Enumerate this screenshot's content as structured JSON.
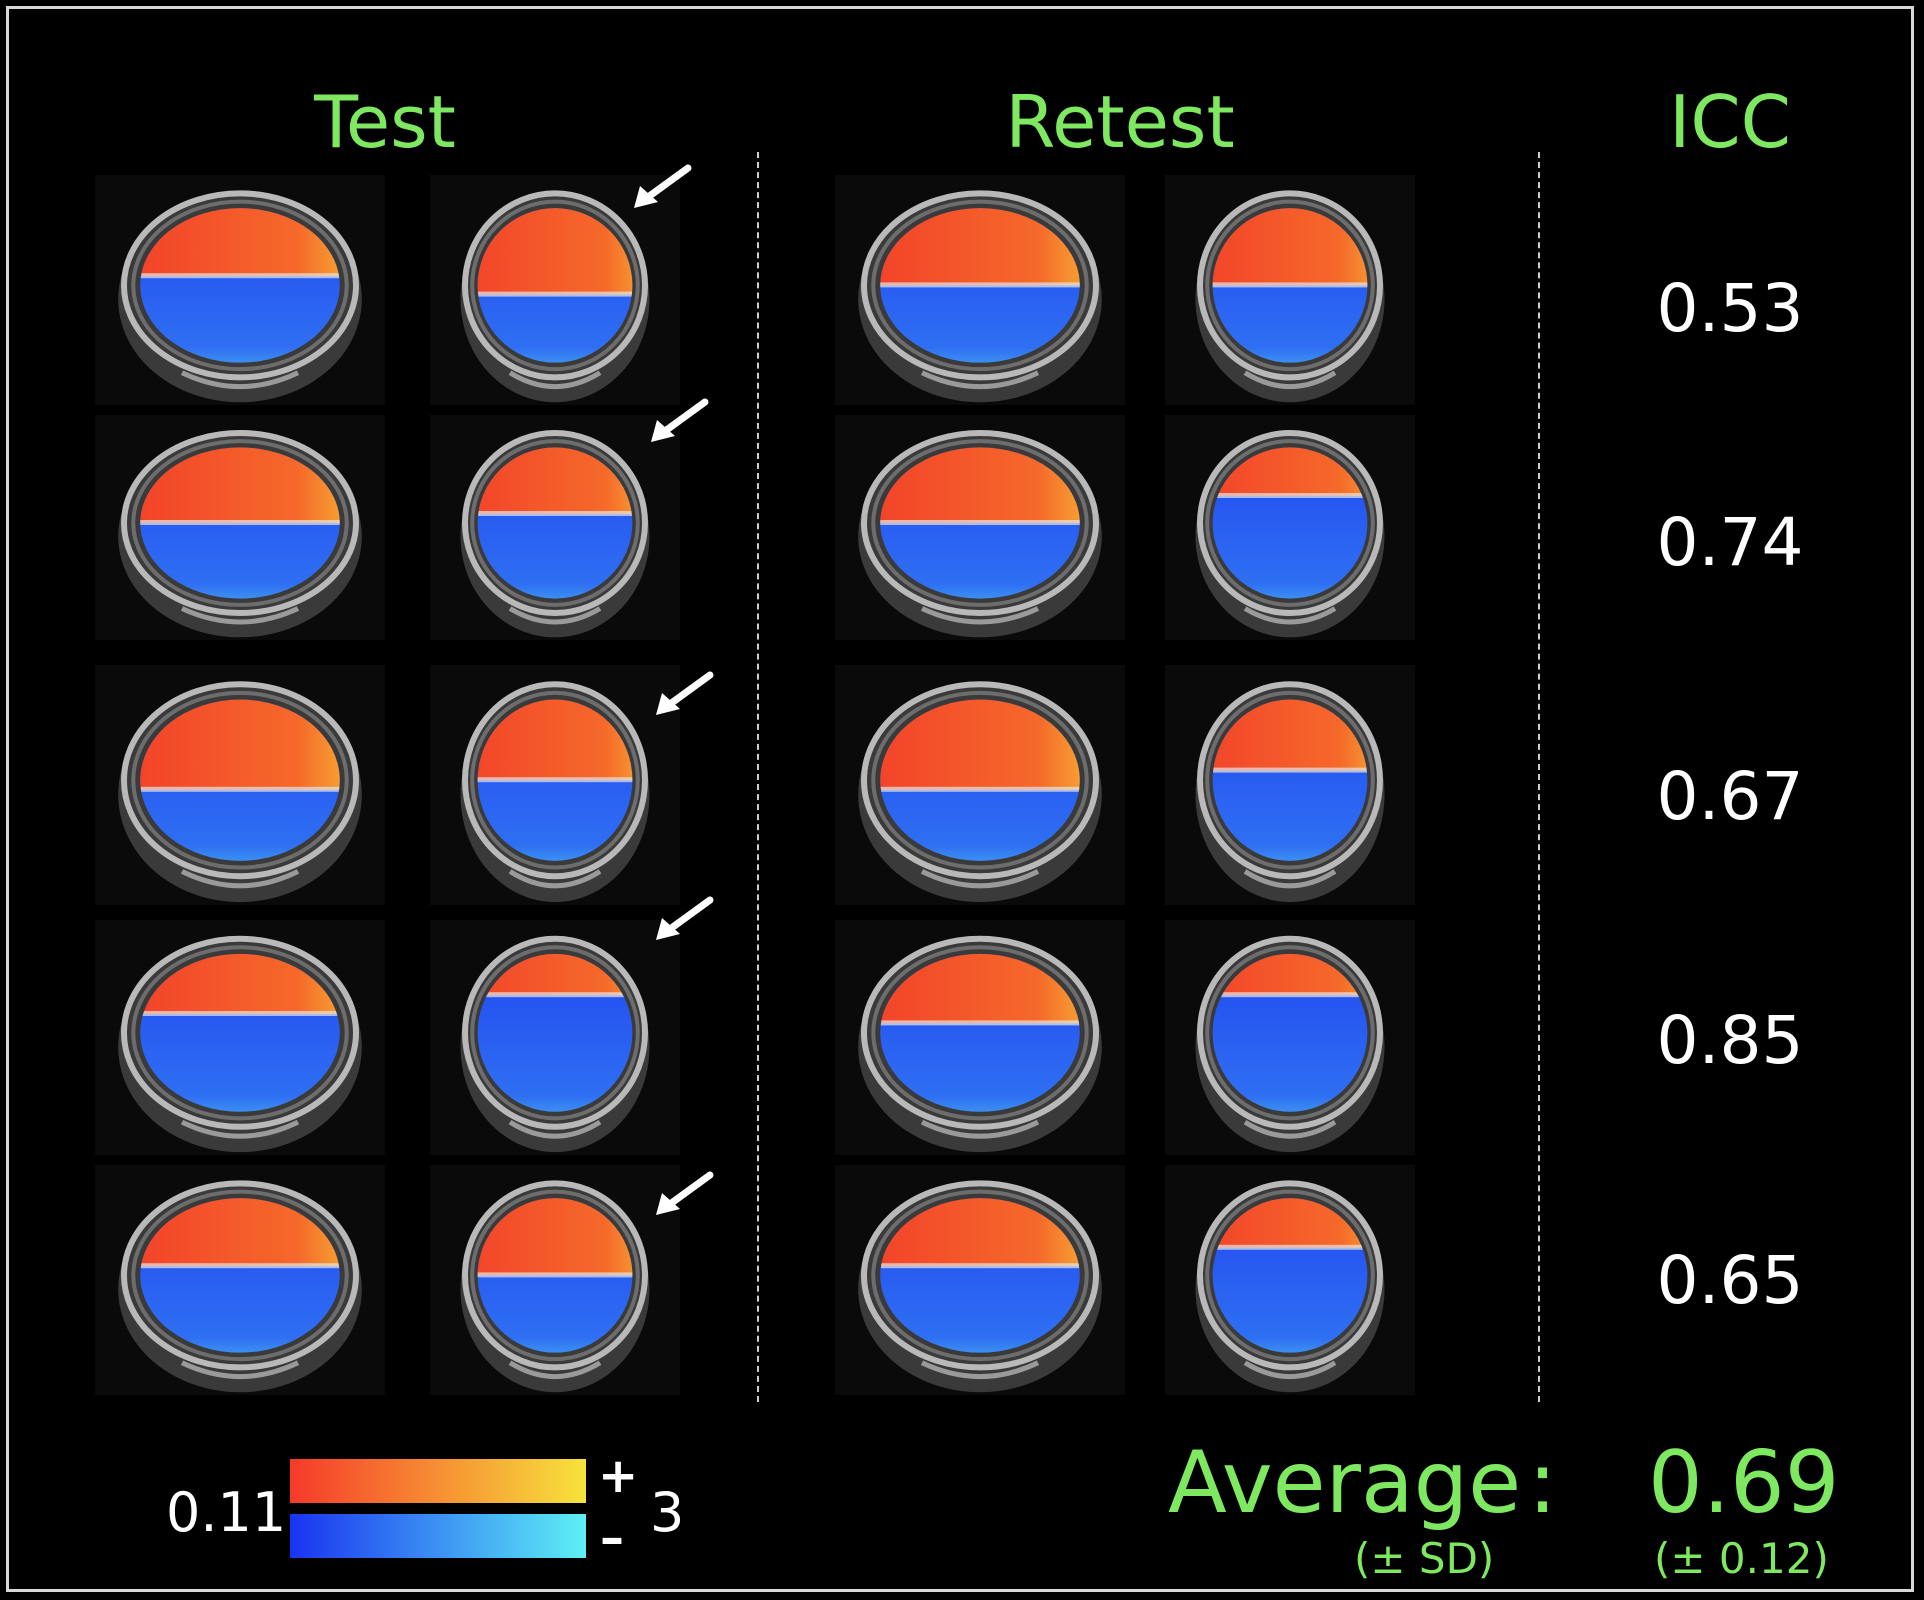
{
  "headers": {
    "test": "Test",
    "retest": "Retest",
    "icc": "ICC"
  },
  "icc_values": [
    "0.53",
    "0.74",
    "0.67",
    "0.85",
    "0.65"
  ],
  "average": {
    "label": "Average",
    "colon": ":",
    "value": "0.69",
    "sd_label": "(± SD)",
    "sd_value": "(± 0.12)"
  },
  "colorbar": {
    "threshold": "0.11",
    "max": "3",
    "plus": "+",
    "minus": "–",
    "positive_colors": [
      "#f53a2a",
      "#f7e33c"
    ],
    "negative_colors": [
      "#1a33f0",
      "#5ef0f5"
    ]
  },
  "colors": {
    "accent": "#7ee860",
    "background": "#000000",
    "text": "#ffffff"
  }
}
